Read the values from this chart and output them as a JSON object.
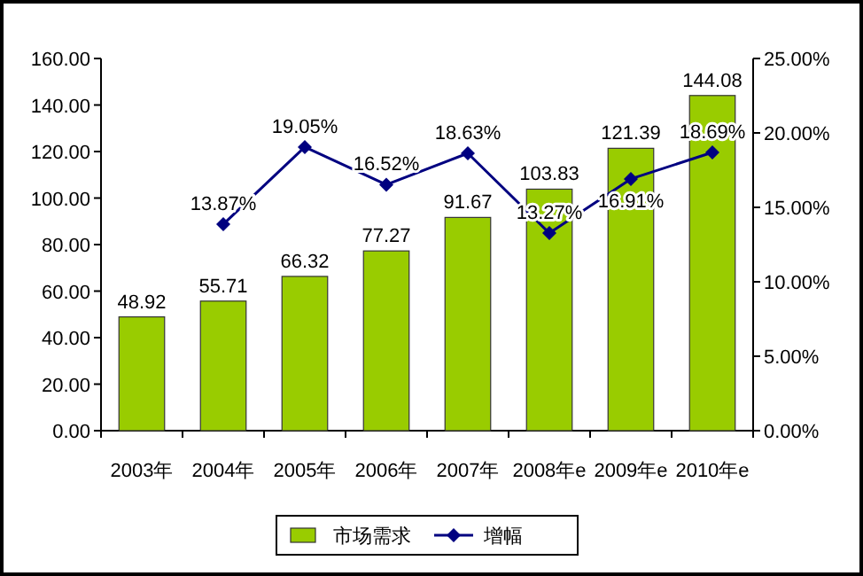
{
  "chart_data": {
    "type": "bar",
    "categories": [
      "2003年",
      "2004年",
      "2005年",
      "2006年",
      "2007年",
      "2008年e",
      "2009年e",
      "2010年e"
    ],
    "series": [
      {
        "name": "市场需求",
        "color": "#99cc00",
        "values": [
          48.92,
          55.71,
          66.32,
          77.27,
          91.67,
          103.83,
          121.39,
          144.08
        ],
        "value_labels": [
          "48.92",
          "55.71",
          "66.32",
          "77.27",
          "91.67",
          "103.83",
          "121.39",
          "144.08"
        ]
      },
      {
        "name": "增幅",
        "type": "line",
        "axis": "y2",
        "color": "#000080",
        "marker": "diamond",
        "values": [
          null,
          13.87,
          19.05,
          16.52,
          18.63,
          13.27,
          16.91,
          18.69
        ],
        "value_labels": [
          null,
          "13.87%",
          "19.05%",
          "16.52%",
          "18.63%",
          "13.27%",
          "16.91%",
          "18.69%"
        ]
      }
    ],
    "ylim": [
      0,
      160
    ],
    "yticks": [
      {
        "value": 0,
        "label": "0.00"
      },
      {
        "value": 20,
        "label": "20.00"
      },
      {
        "value": 40,
        "label": "40.00"
      },
      {
        "value": 60,
        "label": "60.00"
      },
      {
        "value": 80,
        "label": "80.00"
      },
      {
        "value": 100,
        "label": "100.00"
      },
      {
        "value": 120,
        "label": "120.00"
      },
      {
        "value": 140,
        "label": "140.00"
      },
      {
        "value": 160,
        "label": "160.00"
      }
    ],
    "y2lim": [
      0,
      25
    ],
    "y2ticks": [
      {
        "value": 0,
        "label": "0.00%"
      },
      {
        "value": 5,
        "label": "5.00%"
      },
      {
        "value": 10,
        "label": "10.00%"
      },
      {
        "value": 15,
        "label": "15.00%"
      },
      {
        "value": 20,
        "label": "20.00%"
      },
      {
        "value": 25,
        "label": "25.00%"
      }
    ],
    "legend": "bottom"
  }
}
